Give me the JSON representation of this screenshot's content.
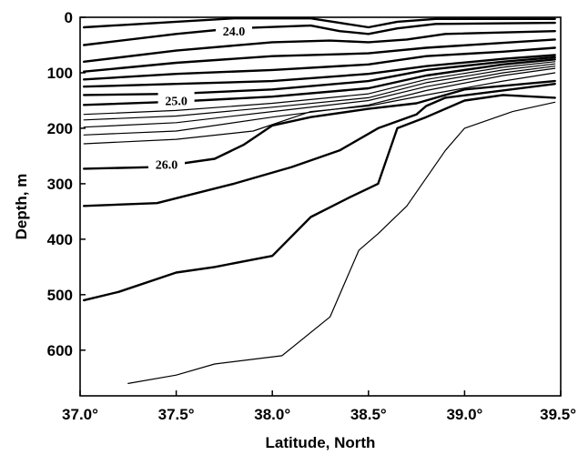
{
  "chart_data": {
    "type": "contour",
    "xlabel": "Latitude, North",
    "ylabel": "Depth, m",
    "xlim": [
      37.0,
      39.5
    ],
    "ylim": [
      0,
      660
    ],
    "y_inverted": true,
    "x_ticks": [
      37.0,
      37.5,
      38.0,
      38.5,
      39.0,
      39.5
    ],
    "x_tick_labels": [
      "37.0°",
      "37.5°",
      "38.0°",
      "38.5°",
      "39.0°",
      "39.5°"
    ],
    "y_ticks": [
      0,
      100,
      200,
      300,
      400,
      500,
      600
    ],
    "y_tick_labels": [
      "0",
      "100",
      "200",
      "300",
      "400",
      "500",
      "600"
    ],
    "contour_labels": [
      {
        "text": "24.0",
        "x": 37.8,
        "y": 25
      },
      {
        "text": "25.0",
        "x": 37.5,
        "y": 150
      },
      {
        "text": "26.0",
        "x": 37.45,
        "y": 265
      }
    ],
    "series": [
      {
        "heavy": true,
        "x": [
          37.02,
          37.5,
          37.8,
          38.2,
          38.35,
          38.5,
          38.65,
          38.85,
          39.47
        ],
        "y": [
          18,
          8,
          2,
          2,
          10,
          18,
          8,
          3,
          3
        ]
      },
      {
        "heavy": true,
        "x": [
          37.02,
          37.5,
          37.8,
          38.2,
          38.35,
          38.5,
          38.65,
          38.85,
          39.47
        ],
        "y": [
          50,
          30,
          20,
          15,
          25,
          30,
          20,
          12,
          10
        ]
      },
      {
        "heavy": true,
        "x": [
          37.02,
          37.5,
          38.0,
          38.3,
          38.5,
          38.7,
          38.9,
          39.47
        ],
        "y": [
          80,
          60,
          45,
          42,
          45,
          40,
          30,
          25
        ]
      },
      {
        "heavy": true,
        "x": [
          37.02,
          37.5,
          38.0,
          38.5,
          38.8,
          39.47
        ],
        "y": [
          98,
          82,
          70,
          65,
          55,
          40
        ]
      },
      {
        "heavy": true,
        "x": [
          37.02,
          37.5,
          38.0,
          38.5,
          38.8,
          39.2,
          39.47
        ],
        "y": [
          112,
          102,
          95,
          85,
          70,
          62,
          55
        ]
      },
      {
        "heavy": true,
        "x": [
          37.02,
          37.5,
          38.0,
          38.5,
          38.8,
          39.2,
          39.47
        ],
        "y": [
          125,
          120,
          115,
          102,
          88,
          75,
          68
        ]
      },
      {
        "heavy": true,
        "x": [
          37.02,
          37.5,
          38.0,
          38.5,
          38.8,
          39.2,
          39.47
        ],
        "y": [
          140,
          138,
          130,
          115,
          95,
          80,
          72
        ]
      },
      {
        "heavy": true,
        "x": [
          37.02,
          37.5,
          38.0,
          38.5,
          38.8,
          39.2,
          39.47
        ],
        "y": [
          158,
          152,
          143,
          128,
          105,
          85,
          76
        ]
      },
      {
        "heavy": false,
        "x": [
          37.02,
          37.5,
          38.0,
          38.5,
          38.8,
          39.2,
          39.47
        ],
        "y": [
          175,
          168,
          155,
          138,
          112,
          90,
          80
        ]
      },
      {
        "heavy": false,
        "x": [
          37.02,
          37.5,
          38.0,
          38.5,
          38.8,
          39.2,
          39.47
        ],
        "y": [
          185,
          178,
          162,
          145,
          118,
          95,
          84
        ]
      },
      {
        "heavy": false,
        "x": [
          37.02,
          37.5,
          38.0,
          38.5,
          38.8,
          39.2,
          39.47
        ],
        "y": [
          198,
          190,
          170,
          150,
          125,
          100,
          88
        ]
      },
      {
        "heavy": false,
        "x": [
          37.02,
          37.5,
          38.0,
          38.5,
          38.8,
          39.2,
          39.47
        ],
        "y": [
          212,
          205,
          180,
          158,
          132,
          105,
          92
        ]
      },
      {
        "heavy": false,
        "x": [
          37.02,
          37.5,
          37.9,
          38.2,
          38.5,
          38.8,
          39.2,
          39.47
        ],
        "y": [
          228,
          220,
          205,
          170,
          160,
          140,
          115,
          100
        ]
      },
      {
        "heavy": true,
        "x": [
          37.02,
          37.4,
          37.7,
          37.85,
          38.0,
          38.2,
          38.5,
          38.75,
          39.0,
          39.47
        ],
        "y": [
          273,
          270,
          255,
          230,
          195,
          180,
          165,
          155,
          130,
          115
        ]
      },
      {
        "heavy": true,
        "x": [
          37.02,
          37.4,
          37.8,
          38.1,
          38.35,
          38.55,
          38.75,
          38.8,
          38.9,
          39.47
        ],
        "y": [
          340,
          335,
          300,
          270,
          240,
          200,
          175,
          160,
          145,
          120
        ]
      },
      {
        "heavy": true,
        "x": [
          37.02,
          37.2,
          37.5,
          37.7,
          38.0,
          38.2,
          38.4,
          38.55,
          38.65,
          38.8,
          39.0,
          39.2,
          39.47
        ],
        "y": [
          510,
          495,
          460,
          450,
          430,
          360,
          325,
          300,
          200,
          180,
          150,
          140,
          145
        ]
      },
      {
        "heavy": false,
        "x": [
          37.25,
          37.5,
          37.7,
          38.05,
          38.3,
          38.45,
          38.55,
          38.7,
          38.9,
          39.0,
          39.25,
          39.47
        ],
        "y": [
          660,
          645,
          625,
          610,
          540,
          420,
          390,
          340,
          240,
          200,
          170,
          153
        ]
      }
    ]
  }
}
